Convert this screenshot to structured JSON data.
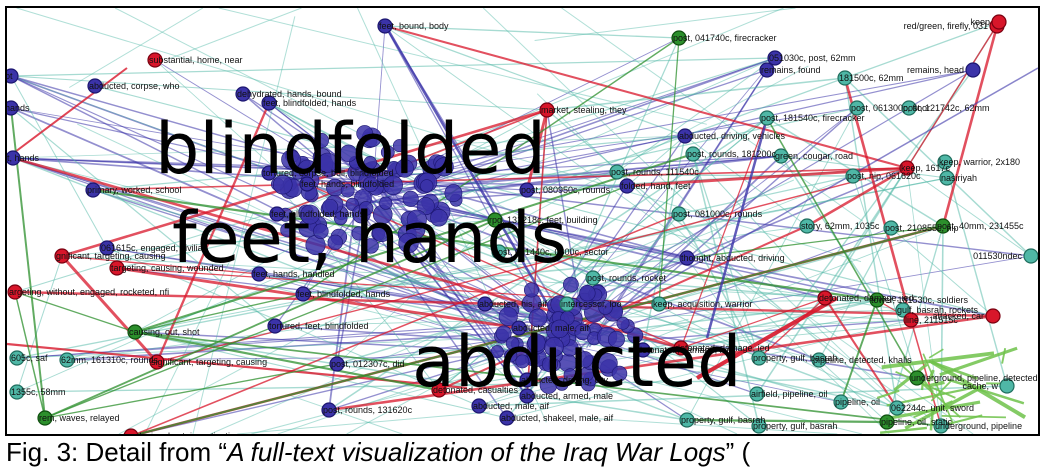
{
  "overlay_words": [
    "blindfolded",
    "feet, hands",
    "abducted"
  ],
  "caption": {
    "prefix": "Fig. 3: Detail from “",
    "title": "A full-text visualization of the Iraq War Logs",
    "suffix": "” ("
  },
  "colors": {
    "purple": "#3b33a8",
    "teal": "#4fb7a6",
    "red": "#d8162a",
    "green": "#2c8f2c",
    "lightgreen": "#6ec24a"
  },
  "labels": [
    "feet, bound, body",
    "substantial, home, near",
    "ot",
    "abducted, corpse, who",
    "dehydrated, hands, bound",
    "feet, blindfolded, hands",
    "hands",
    "t, hands",
    "tortured, corpse, bull, blindfolded",
    "primary, worked, school",
    "feet, hands, blindfolded",
    "feet, blindfolded, hands",
    "061615c, engaged, civilian",
    "gnificant, targeting, causing",
    "targeting, causing, wounded",
    "feet, hands, handled",
    "argeting, without, engaged, rocketed, nfi",
    "feet, blindfolded, hands",
    "tortured, feet, blindfolded",
    "causing, out, shot",
    "605c, saf",
    "62mm, 161310c, rounds",
    "significant, targeting, causing",
    "post, 012307c, did",
    "1355c, 58mm",
    "rem, waves, relayed",
    "post, rounds, 131620c",
    "explosion, kept, investigating",
    "post, 041740c, firecracker",
    "051030c, post, 62mm",
    "red/green, firefly, 031",
    "keep",
    "remains, head",
    "remains, found",
    "181500c, 62mm",
    "abducted, driving, vehicles",
    "post, 181540c, firecracker",
    "post, 061300c, floor",
    "post, 121742c, 62mm",
    "market, stealing, they",
    "post, rounds, 181200c",
    "green, cougar, road",
    "keep, warrior, 2x180",
    "keep, 1617c",
    "post, rounds, 111540c",
    "post, nip, 061620c",
    "nasiriyah",
    "post, 080950c, rounds",
    "folded, hand, feet",
    "post, 081000c, rounds",
    "rpg, 131218c, feet, building",
    "post, 051440c, 0600c, sector",
    "story, 62mm, 1035c",
    "post, 210855c, nip",
    "post, 40mm, 231455c",
    "011530ndec",
    "thought, abducted, driving",
    "post, rounds, rocket",
    "abducted, his, aif",
    "intercessor, loo",
    "keep, acquisition, warrior",
    "detonated, damage, ied",
    "tower, 181530c, soldiers",
    "gulf, basrah, rockets",
    "line, 211515c",
    "attacked, car",
    "abducted, male, aif",
    "detonated, damage, ied",
    "detonated, damage, ied",
    "property, gulf, basrah",
    "pipeline, detected, khalis",
    "underground, pipeline, detected",
    "cache, w",
    "abducted, driving, city",
    "detonated, casualties",
    "abducted, armed, male",
    "airfield, pipeline, oil",
    "pipeline, oil",
    "062244c, unit, sword",
    "abducted, male, aif",
    "abducted, shakeel, male, aif",
    "property, gulf, basrah",
    "pipeline, oil, static",
    "underground, pipeline",
    "property, gulf, basrah"
  ]
}
